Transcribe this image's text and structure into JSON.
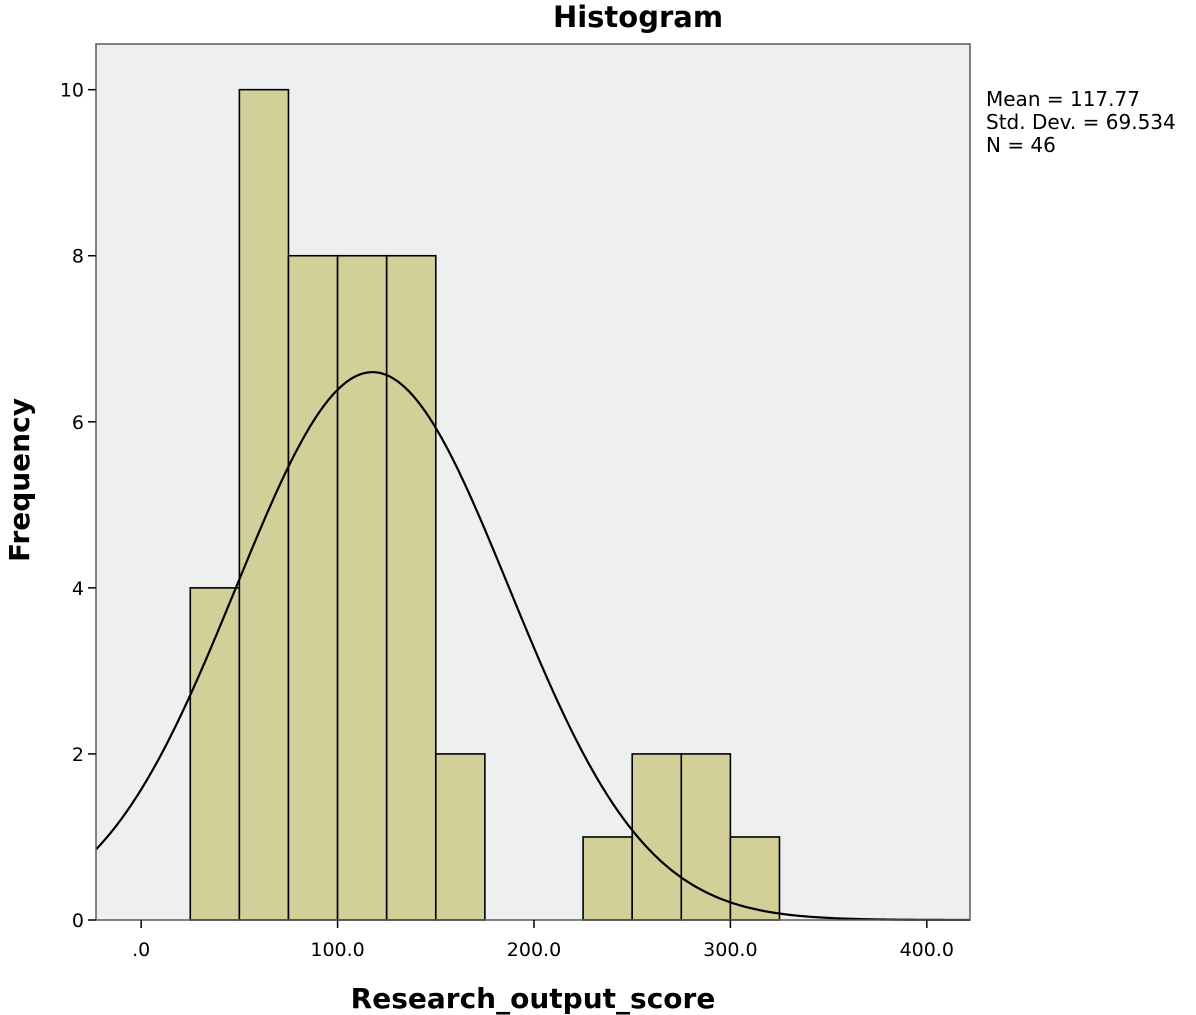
{
  "chart_data": {
    "type": "bar",
    "subtype": "histogram",
    "title": "Histogram",
    "xlabel": "Research_output_score",
    "ylabel": "Frequency",
    "xlim": [
      -23,
      422
    ],
    "ylim": [
      0,
      10.55
    ],
    "x_ticks": [
      {
        "value": 0,
        "label": ".0"
      },
      {
        "value": 100,
        "label": "100.0"
      },
      {
        "value": 200,
        "label": "200.0"
      },
      {
        "value": 300,
        "label": "300.0"
      },
      {
        "value": 400,
        "label": "400.0"
      }
    ],
    "y_ticks": [
      {
        "value": 0,
        "label": "0"
      },
      {
        "value": 2,
        "label": "2"
      },
      {
        "value": 4,
        "label": "4"
      },
      {
        "value": 6,
        "label": "6"
      },
      {
        "value": 8,
        "label": "8"
      },
      {
        "value": 10,
        "label": "10"
      }
    ],
    "bins": [
      {
        "start": 25,
        "end": 50,
        "count": 4
      },
      {
        "start": 50,
        "end": 75,
        "count": 10
      },
      {
        "start": 75,
        "end": 100,
        "count": 8
      },
      {
        "start": 100,
        "end": 125,
        "count": 8
      },
      {
        "start": 125,
        "end": 150,
        "count": 8
      },
      {
        "start": 150,
        "end": 175,
        "count": 2
      },
      {
        "start": 225,
        "end": 250,
        "count": 1
      },
      {
        "start": 250,
        "end": 275,
        "count": 2
      },
      {
        "start": 275,
        "end": 300,
        "count": 2
      },
      {
        "start": 300,
        "end": 325,
        "count": 1
      }
    ],
    "normal_curve": {
      "mean": 117.77,
      "std_dev": 69.534,
      "n": 46,
      "bin_width": 25
    },
    "statistics": [
      "Mean = 117.77",
      "Std. Dev. = 69.534",
      "N = 46"
    ],
    "grid": false,
    "colors": {
      "bar_fill": "#d3cf98",
      "bar_stroke": "#000000",
      "plot_background": "#eef0f0",
      "frame": "#5a5a5a",
      "curve": "#000000"
    }
  }
}
